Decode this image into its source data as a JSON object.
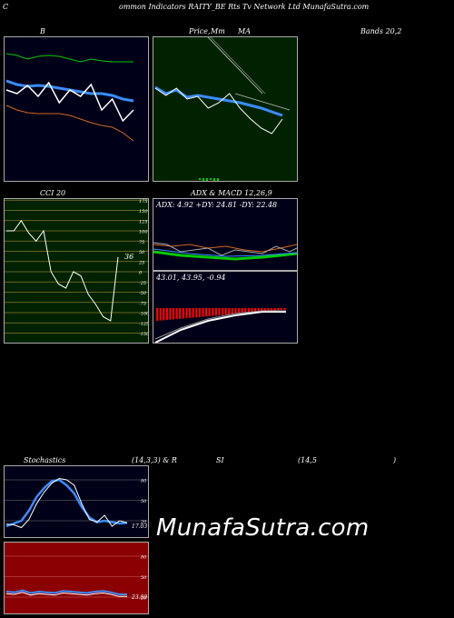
{
  "header": {
    "c": "C",
    "title": "ommon  Indicators RAITY_BE Rts Tv   Network Ltd MunafaSutra.com"
  },
  "top_titles": {
    "b": "B",
    "price": "Price,",
    "mm": "Mm",
    "ma": "MA",
    "bands": "Bands 20,2"
  },
  "mid_titles": {
    "cci": "CCI 20",
    "adx": "ADX  & MACD 12,26,9"
  },
  "adx": {
    "text": "ADX: 4.92  +DY: 24.81 -DY: 22.48"
  },
  "macd": {
    "text": "43.01, 43.95, -0.94"
  },
  "cci": {
    "value_label": "36"
  },
  "stoch_titles": {
    "s": "Stochastics",
    "params": "(14,3,3) & R",
    "si": "SI",
    "rp": "(14,5",
    "close": ")"
  },
  "stoch": {
    "value_label": "17.03"
  },
  "rsi": {
    "value_label": "23.80"
  },
  "watermark": "MunafaSutra.com",
  "colors": {
    "bbands_bg": "#000018",
    "price_ma_bg": "#002200",
    "cci_bg": "#002200",
    "adx_bg": "#000018",
    "stoch_bg": "#000018",
    "rsi_bg": "#8b0000",
    "green": "#00cc00",
    "blue": "#3a8cff",
    "orange": "#d2691e",
    "red": "#ff0000"
  },
  "chart_data": [
    {
      "type": "line",
      "name_panel": "bollinger",
      "series": [
        {
          "values": [
            18,
            20,
            24,
            21,
            20,
            21,
            24,
            27,
            24,
            26,
            27,
            27,
            27
          ]
        },
        {
          "values": [
            48,
            52,
            54,
            53,
            54,
            56,
            58,
            60,
            62,
            62,
            64,
            68,
            70
          ]
        },
        {
          "values": [
            75,
            80,
            83,
            84,
            84,
            84,
            86,
            90,
            94,
            97,
            99,
            105,
            114
          ]
        },
        {
          "values": [
            58,
            62,
            53,
            65,
            50,
            72,
            58,
            65,
            52,
            80,
            68,
            92,
            80
          ]
        }
      ]
    },
    {
      "type": "line",
      "name_panel": "price_ma",
      "series": [
        {
          "values": [
            55,
            62,
            58,
            66,
            64,
            66,
            68,
            70,
            72,
            75,
            78,
            82,
            86
          ]
        },
        {
          "values": [
            56,
            64,
            56,
            68,
            65,
            78,
            72,
            62,
            78,
            90,
            100,
            106,
            90
          ]
        }
      ]
    },
    {
      "type": "line",
      "name_panel": "cci",
      "levels": [
        175,
        150,
        125,
        100,
        75,
        50,
        25,
        0,
        -25,
        -50,
        -75,
        -100,
        -125,
        -150,
        -175
      ],
      "values": [
        100,
        100,
        125,
        95,
        75,
        100,
        0,
        -30,
        -40,
        0,
        -10,
        -55,
        -80,
        -110,
        -120,
        36
      ]
    },
    {
      "type": "line",
      "name_panel": "stochastics",
      "levels": [
        80,
        50,
        20
      ],
      "series": [
        {
          "values": [
            15,
            14,
            10,
            22,
            45,
            62,
            75,
            82,
            80,
            72,
            45,
            22,
            18,
            28,
            12,
            20,
            17
          ]
        },
        {
          "values": [
            12,
            16,
            20,
            35,
            55,
            68,
            78,
            80,
            72,
            60,
            40,
            25,
            18,
            20,
            18,
            16,
            17
          ]
        }
      ]
    },
    {
      "type": "line",
      "name_panel": "rsi",
      "levels": [
        80,
        50,
        20
      ],
      "values": [
        28,
        27,
        30,
        26,
        28,
        27,
        26,
        29,
        28,
        27,
        26,
        28,
        29,
        27,
        24,
        24
      ]
    }
  ]
}
